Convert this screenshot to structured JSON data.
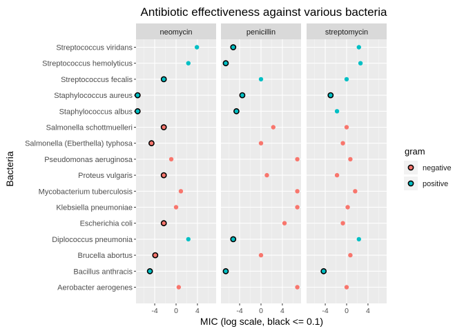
{
  "chart_data": {
    "type": "scatter",
    "title": "Antibiotic effectiveness against various bacteria",
    "xlabel": "MIC (log scale, black <= 0.1)",
    "ylabel": "Bacteria",
    "xlim": [
      -7.5,
      7.5
    ],
    "xticks": [
      -4,
      0,
      4
    ],
    "grid": true,
    "legend": {
      "title": "gram",
      "position": "right",
      "entries": [
        {
          "key": "negative",
          "label": "negative"
        },
        {
          "key": "positive",
          "label": "positive"
        }
      ]
    },
    "colors": {
      "negative": "#F8766D",
      "positive": "#00BFC4",
      "outline": "#000000",
      "panel": "#EBEBEB",
      "strip": "#D9D9D9",
      "grid_major": "#ffffff"
    },
    "facets": [
      "neomycin",
      "penicillin",
      "streptomycin"
    ],
    "bacteria": [
      {
        "name": "Streptococcus viridans",
        "gram": "positive",
        "values": [
          3.9,
          -5.2,
          2.3
        ]
      },
      {
        "name": "Streptococcus hemolyticus",
        "gram": "positive",
        "values": [
          2.3,
          -6.6,
          2.6
        ]
      },
      {
        "name": "Streptococcus fecalis",
        "gram": "positive",
        "values": [
          -2.3,
          0.0,
          0.0
        ]
      },
      {
        "name": "Staphylococcus aureus",
        "gram": "positive",
        "values": [
          -7.2,
          -3.5,
          -3.0
        ]
      },
      {
        "name": "Staphylococcus albus",
        "gram": "positive",
        "values": [
          -7.2,
          -4.6,
          -1.8
        ]
      },
      {
        "name": "Salmonella schottmuelleri",
        "gram": "negative",
        "values": [
          -2.3,
          2.3,
          0.0
        ]
      },
      {
        "name": "Salmonella (Eberthella) typhosa",
        "gram": "negative",
        "values": [
          -4.6,
          0.0,
          -0.7
        ]
      },
      {
        "name": "Pseudomonas aeruginosa",
        "gram": "negative",
        "values": [
          -0.9,
          6.8,
          0.7
        ]
      },
      {
        "name": "Proteus vulgaris",
        "gram": "negative",
        "values": [
          -2.3,
          1.1,
          -1.8
        ]
      },
      {
        "name": "Mycobacterium tuberculosis",
        "gram": "negative",
        "values": [
          0.9,
          6.8,
          1.6
        ]
      },
      {
        "name": "Klebsiella pneumoniae",
        "gram": "negative",
        "values": [
          0.0,
          6.8,
          0.2
        ]
      },
      {
        "name": "Escherichia coli",
        "gram": "negative",
        "values": [
          -2.3,
          4.4,
          -0.7
        ]
      },
      {
        "name": "Diplococcus pneumonia",
        "gram": "positive",
        "values": [
          2.3,
          -5.2,
          2.3
        ]
      },
      {
        "name": "Brucella abortus",
        "gram": "negative",
        "values": [
          -3.9,
          0.0,
          0.7
        ]
      },
      {
        "name": "Bacillus anthracis",
        "gram": "positive",
        "values": [
          -4.9,
          -6.6,
          -4.3
        ]
      },
      {
        "name": "Aerobacter aerogenes",
        "gram": "negative",
        "values": [
          0.5,
          6.8,
          0.0
        ]
      }
    ],
    "outlined_below": -2.3
  }
}
